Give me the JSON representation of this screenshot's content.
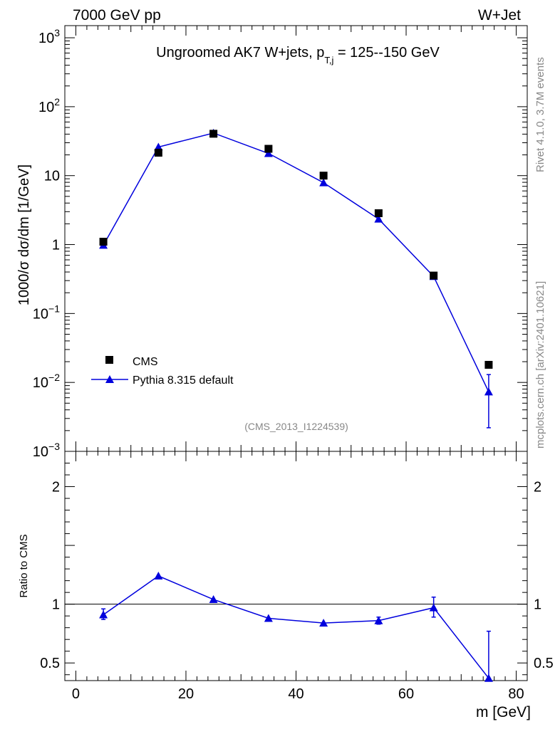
{
  "header": {
    "left_label": "7000 GeV pp",
    "right_label": "W+Jet"
  },
  "side_labels": {
    "rivet": "Rivet 4.1.0,  3.7M events",
    "mcplots": "mcplots.cern.ch [arXiv:2401.10621]"
  },
  "chart_data": [
    {
      "type": "line",
      "scale": "log",
      "title_main": "Ungroomed AK7 W+jets, p",
      "title_sub": "T,j",
      "title_rest": " = 125--150 GeV",
      "ylabel": "1000/σ  dσ/dm [1/GeV]",
      "watermark": "(CMS_2013_I1224539)",
      "xlim": [
        -2,
        82
      ],
      "ylim": [
        0.001,
        1500
      ],
      "y_ticks": [
        {
          "base": "10",
          "exp": "3",
          "value": 1000
        },
        {
          "base": "10",
          "exp": "2",
          "value": 100
        },
        {
          "text": "10",
          "value": 10
        },
        {
          "text": "1",
          "value": 1
        },
        {
          "base": "10",
          "exp": "−1",
          "value": 0.1
        },
        {
          "base": "10",
          "exp": "−2",
          "value": 0.01
        },
        {
          "base": "10",
          "exp": "−3",
          "value": 0.001
        }
      ],
      "legend": [
        {
          "label": "CMS",
          "marker": "square",
          "color": "#000000"
        },
        {
          "label": "Pythia 8.315 default",
          "marker": "triangle",
          "color": "#0000dd"
        }
      ],
      "x": [
        5,
        15,
        25,
        35,
        45,
        55,
        65,
        75
      ],
      "series": [
        {
          "name": "CMS",
          "values": [
            1.1,
            21.5,
            40.5,
            24.5,
            10.0,
            2.85,
            0.355,
            0.018
          ]
        },
        {
          "name": "Pythia 8.315 default",
          "values": [
            0.98,
            26.0,
            41.5,
            21.0,
            7.9,
            2.35,
            0.345,
            0.0073
          ],
          "err_low": [
            null,
            null,
            null,
            null,
            null,
            null,
            null,
            0.0051
          ],
          "err_high": [
            null,
            null,
            null,
            null,
            null,
            null,
            null,
            0.0057
          ]
        }
      ]
    },
    {
      "type": "line",
      "ylabel": "Ratio to CMS",
      "xlabel": "m [GeV]",
      "xlim": [
        -2,
        82
      ],
      "ylim": [
        0.35,
        2.3
      ],
      "reference_line": 1.0,
      "x_ticks": [
        {
          "text": "0",
          "value": 0
        },
        {
          "text": "20",
          "value": 20
        },
        {
          "text": "40",
          "value": 40
        },
        {
          "text": "60",
          "value": 60
        },
        {
          "text": "80",
          "value": 80
        }
      ],
      "y_ticks": [
        {
          "text": "2",
          "value": 2
        },
        {
          "text": "1",
          "value": 1
        },
        {
          "text": "0.5",
          "value": 0.5
        }
      ],
      "x": [
        5,
        15,
        25,
        35,
        45,
        55,
        65,
        75
      ],
      "series": [
        {
          "name": "Pythia 8.315 default / CMS",
          "values": [
            0.91,
            1.24,
            1.04,
            0.88,
            0.84,
            0.86,
            0.97,
            0.37
          ],
          "err_low": [
            0.04,
            null,
            null,
            null,
            null,
            0.03,
            0.08,
            null
          ],
          "err_high": [
            0.05,
            null,
            null,
            null,
            null,
            0.03,
            0.09,
            0.4
          ]
        }
      ]
    }
  ]
}
